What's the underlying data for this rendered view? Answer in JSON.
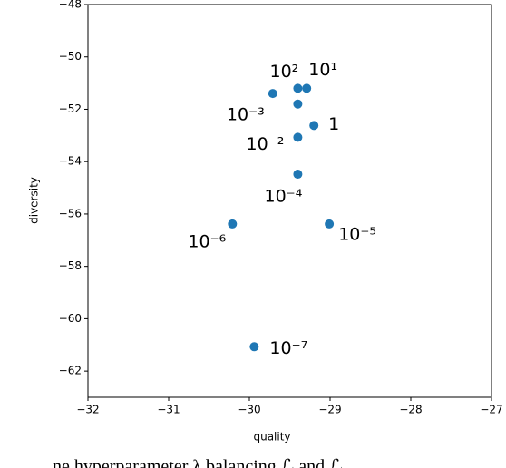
{
  "chart_data": {
    "type": "scatter",
    "x_label": "quality",
    "y_label": "diversity",
    "series": [
      {
        "color": "#1f77b4",
        "x": [
          -29.4,
          -29.29,
          -29.71,
          -29.4,
          -29.2,
          -29.4,
          -29.4,
          -30.21,
          -29.01,
          -29.94
        ],
        "values": [
          -51.2,
          -51.2,
          -51.4,
          -51.8,
          -52.62,
          -53.07,
          -54.48,
          -56.38,
          -56.38,
          -61.07
        ],
        "labels": [
          "10²",
          "10¹",
          "10⁻³",
          null,
          "1",
          "10⁻²",
          "10⁻⁴",
          "10⁻⁶",
          "10⁻⁵",
          "10⁻⁷"
        ]
      }
    ],
    "xlim": [
      -32,
      -27
    ],
    "xticks": [
      {
        "value": -32,
        "label": "−32"
      },
      {
        "value": -31,
        "label": "−31"
      },
      {
        "value": -30,
        "label": "−30"
      },
      {
        "value": -29,
        "label": "−29"
      },
      {
        "value": -28,
        "label": "−28"
      },
      {
        "value": -27,
        "label": "−27"
      }
    ],
    "ylim": [
      -63,
      -48
    ],
    "yticks": [
      {
        "value": -62,
        "label": "−62"
      },
      {
        "value": -60,
        "label": "−60"
      },
      {
        "value": -58,
        "label": "−58"
      },
      {
        "value": -56,
        "label": "−56"
      },
      {
        "value": -54,
        "label": "−54"
      },
      {
        "value": -52,
        "label": "−52"
      },
      {
        "value": -50,
        "label": "−50"
      },
      {
        "value": -48,
        "label": "−48"
      }
    ],
    "caption": "ne hyperparameter λ balancing ℒ       and ℒ"
  }
}
